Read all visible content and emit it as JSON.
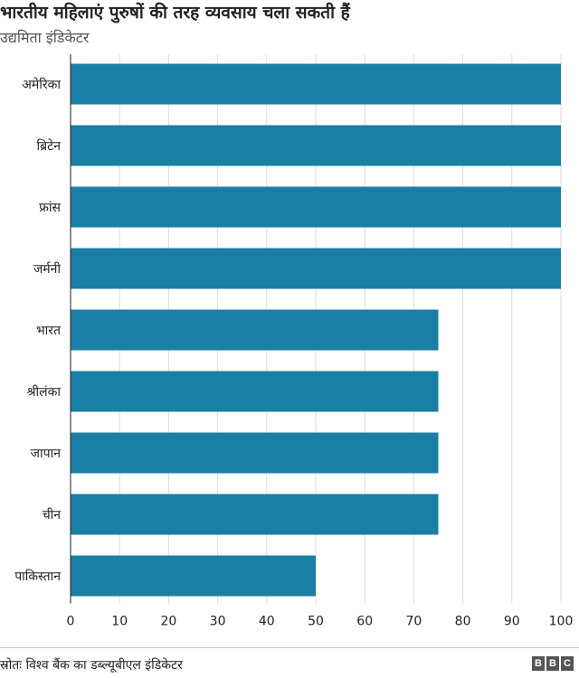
{
  "title": "भारतीय महिलाएं पुरुषों की तरह व्यवसाय चला सकती हैं",
  "subtitle": "उद्यमिता इंडिकेटर",
  "source": "स्रोतः विश्व बैंक का डब्ल्यूबीएल इंडिकेटर",
  "logo": [
    "B",
    "B",
    "C"
  ],
  "colors": {
    "bar": "#1a7fa4",
    "grid": "#dddddd",
    "axis": "#222222"
  },
  "chart_data": {
    "type": "bar",
    "orientation": "horizontal",
    "categories": [
      "अमेरिका",
      "ब्रिटेन",
      "फ्रांस",
      "जर्मनी",
      "भारत",
      "श्रीलंका",
      "जापान",
      "चीन",
      "पाकिस्तान"
    ],
    "values": [
      100,
      100,
      100,
      100,
      75,
      75,
      75,
      75,
      50
    ],
    "xlim": [
      0,
      100
    ],
    "xticks": [
      0,
      10,
      20,
      30,
      40,
      50,
      60,
      70,
      80,
      90,
      100
    ],
    "grid": true,
    "title": "भारतीय महिलाएं पुरुषों की तरह व्यवसाय चला सकती हैं",
    "subtitle": "उद्यमिता इंडिकेटर"
  }
}
